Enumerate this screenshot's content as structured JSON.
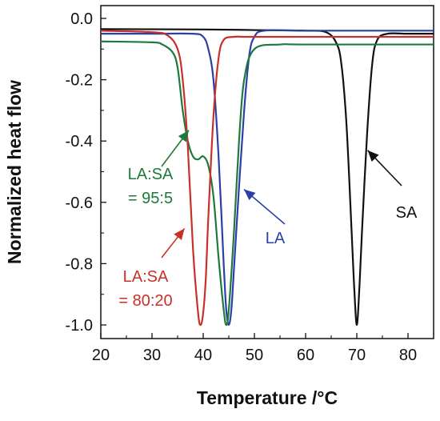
{
  "chart_data": {
    "type": "line",
    "title": "",
    "xlabel": "Temperature /°C",
    "ylabel": "Normalized heat flow",
    "xlim": [
      20,
      85
    ],
    "ylim": [
      -1.05,
      0.0
    ],
    "xticks": [
      20,
      30,
      40,
      50,
      60,
      70,
      80
    ],
    "yticks": [
      0.0,
      -0.2,
      -0.4,
      -0.6,
      -0.8,
      -1.0
    ],
    "xtick_labels": [
      "20",
      "30",
      "40",
      "50",
      "60",
      "70",
      "80"
    ],
    "ytick_labels": [
      "0.0",
      "-0.2",
      "-0.4",
      "-0.6",
      "-0.8",
      "-1.0"
    ],
    "grid": false,
    "legend": "none",
    "series": [
      {
        "name": "SA",
        "color": "#111111",
        "x": [
          20,
          40,
          50,
          60,
          64,
          66,
          67,
          68,
          69,
          69.5,
          70,
          70.5,
          71,
          72,
          73,
          74,
          76,
          80,
          85
        ],
        "y": [
          -0.035,
          -0.036,
          -0.038,
          -0.04,
          -0.045,
          -0.08,
          -0.15,
          -0.35,
          -0.7,
          -0.88,
          -1.0,
          -0.88,
          -0.7,
          -0.38,
          -0.15,
          -0.07,
          -0.05,
          -0.05,
          -0.05
        ]
      },
      {
        "name": "LA",
        "color": "#2b3fa8",
        "x": [
          20,
          30,
          38,
          40,
          41,
          42,
          43,
          44,
          44.5,
          45,
          45.5,
          46,
          47,
          48,
          49,
          50,
          52,
          60,
          70,
          85
        ],
        "y": [
          -0.05,
          -0.05,
          -0.05,
          -0.06,
          -0.1,
          -0.2,
          -0.45,
          -0.8,
          -0.95,
          -1.0,
          -0.95,
          -0.82,
          -0.55,
          -0.3,
          -0.12,
          -0.06,
          -0.04,
          -0.04,
          -0.04,
          -0.04
        ]
      },
      {
        "name": "LA:SA = 95:5",
        "color": "#1d7a3a",
        "x": [
          20,
          30,
          32,
          34,
          35,
          36,
          37,
          38,
          39,
          40,
          41,
          42,
          43,
          44,
          44.5,
          45,
          46,
          47,
          48,
          50,
          55,
          60,
          85
        ],
        "y": [
          -0.075,
          -0.078,
          -0.085,
          -0.11,
          -0.16,
          -0.3,
          -0.4,
          -0.45,
          -0.46,
          -0.45,
          -0.48,
          -0.58,
          -0.78,
          -0.95,
          -1.0,
          -0.95,
          -0.7,
          -0.4,
          -0.2,
          -0.1,
          -0.085,
          -0.085,
          -0.085
        ]
      },
      {
        "name": "LA:SA = 80:20",
        "color": "#c8312a",
        "x": [
          20,
          30,
          33,
          35,
          36,
          37,
          38,
          39,
          39.5,
          40,
          40.5,
          41,
          42,
          43,
          44,
          46,
          48,
          55,
          85
        ],
        "y": [
          -0.04,
          -0.045,
          -0.055,
          -0.1,
          -0.2,
          -0.42,
          -0.75,
          -0.96,
          -1.0,
          -0.96,
          -0.85,
          -0.65,
          -0.32,
          -0.13,
          -0.07,
          -0.06,
          -0.06,
          -0.06,
          -0.06
        ]
      }
    ],
    "annotations": [
      {
        "text": "SA",
        "color": "#111111",
        "arrow_to": [
          71.5,
          -0.42
        ]
      },
      {
        "text": "LA",
        "color": "#2b3fa8",
        "arrow_to": [
          47.5,
          -0.55
        ]
      },
      {
        "lines": [
          "LA:SA",
          "= 95:5"
        ],
        "color": "#1d7a3a",
        "arrow_to": [
          37.5,
          -0.36
        ]
      },
      {
        "lines": [
          "LA:SA",
          "= 80:20"
        ],
        "color": "#c8312a",
        "arrow_to": [
          36.5,
          -0.68
        ]
      }
    ]
  }
}
